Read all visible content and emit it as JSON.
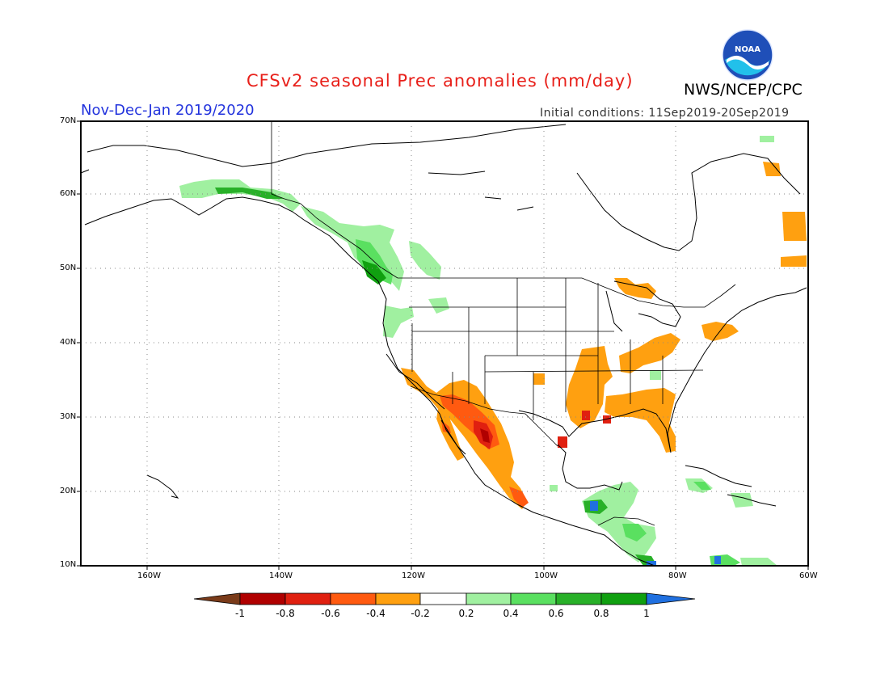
{
  "title": "CFSv2 seasonal Prec anomalies (mm/day)",
  "period": "Nov-Dec-Jan 2019/2020",
  "initial_conditions": "Initial conditions: 11Sep2019-20Sep2019",
  "agency": "NWS/NCEP/CPC",
  "logo_text": "NOAA",
  "lat_labels": [
    "70N",
    "60N",
    "50N",
    "40N",
    "30N",
    "20N",
    "10N"
  ],
  "lon_labels": [
    "160W",
    "140W",
    "120W",
    "100W",
    "80W",
    "60W"
  ],
  "colorbar": {
    "ticks": [
      "-1",
      "-0.8",
      "-0.6",
      "-0.4",
      "-0.2",
      "0.2",
      "0.4",
      "0.6",
      "0.8",
      "1"
    ],
    "colors": {
      "below_min": "#7a3b1a",
      "c_n10_n08": "#b00000",
      "c_n08_n06": "#e02010",
      "c_n06_n04": "#ff5a10",
      "c_n04_n02": "#ffa010",
      "c_n02_02": "#ffffff",
      "c_02_04": "#a0f0a0",
      "c_04_06": "#5ae060",
      "c_06_08": "#28b028",
      "c_08_10": "#10a010",
      "above_max": "#2070e0"
    }
  }
}
